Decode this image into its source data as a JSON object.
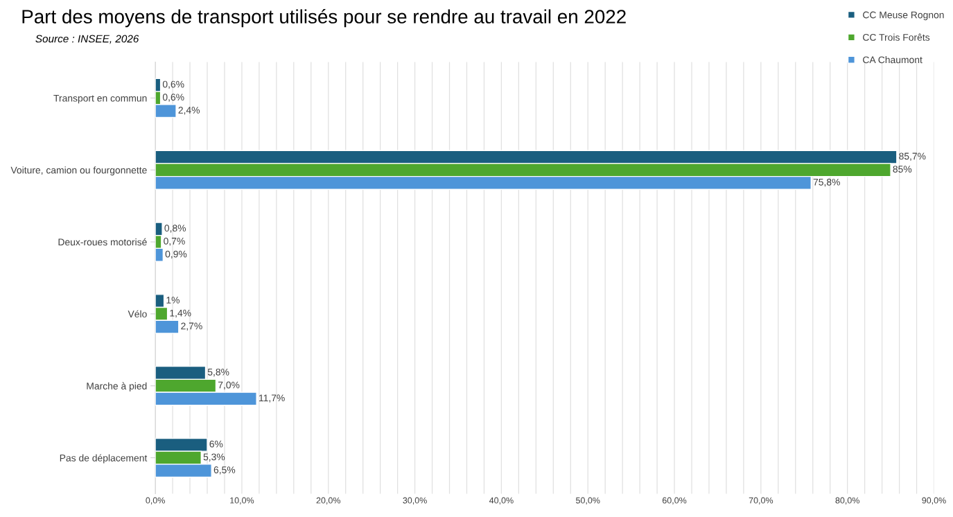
{
  "chart_data": {
    "type": "bar",
    "orientation": "horizontal",
    "title": "Part des moyens de transport utilisés pour se rendre au travail en 2022",
    "annotations": [
      "Source : INSEE, 2026"
    ],
    "categories": [
      "Transport en commun",
      "Voiture, camion ou fourgonnette",
      "Deux-roues motorisé",
      "Vélo",
      "Marche à pied",
      "Pas de déplacement"
    ],
    "series": [
      {
        "name": "CC Meuse Rognon",
        "color": "#1a5e7f",
        "values": [
          0.6,
          85.7,
          0.8,
          1,
          5.8,
          6
        ],
        "value_labels": [
          "0,6%",
          "85,7%",
          "0,8%",
          "1%",
          "5,8%",
          "6%"
        ]
      },
      {
        "name": "CC Trois Forêts",
        "color": "#4ea72e",
        "values": [
          0.6,
          85,
          0.7,
          1.4,
          7.0,
          5.3
        ],
        "value_labels": [
          "0,6%",
          "85%",
          "0,7%",
          "1,4%",
          "7,0%",
          "5,3%"
        ]
      },
      {
        "name": "CA Chaumont",
        "color": "#4e95d9",
        "values": [
          2.4,
          75.8,
          0.9,
          2.7,
          11.7,
          6.5
        ],
        "value_labels": [
          "2,4%",
          "75,8%",
          "0,9%",
          "2,7%",
          "11,7%",
          "6,5%"
        ]
      }
    ],
    "xlim": [
      0,
      90
    ],
    "xticks": [
      {
        "value": 0,
        "label": "0,0%"
      },
      {
        "value": 2,
        "label": null
      },
      {
        "value": 4,
        "label": null
      },
      {
        "value": 6,
        "label": null
      },
      {
        "value": 8,
        "label": null
      },
      {
        "value": 10,
        "label": "10,0%"
      },
      {
        "value": 12,
        "label": null
      },
      {
        "value": 14,
        "label": null
      },
      {
        "value": 16,
        "label": null
      },
      {
        "value": 18,
        "label": null
      },
      {
        "value": 20,
        "label": "20,0%"
      },
      {
        "value": 22,
        "label": null
      },
      {
        "value": 24,
        "label": null
      },
      {
        "value": 26,
        "label": null
      },
      {
        "value": 28,
        "label": null
      },
      {
        "value": 30,
        "label": "30,0%"
      },
      {
        "value": 32,
        "label": null
      },
      {
        "value": 34,
        "label": null
      },
      {
        "value": 36,
        "label": null
      },
      {
        "value": 38,
        "label": null
      },
      {
        "value": 40,
        "label": "40,0%"
      },
      {
        "value": 42,
        "label": null
      },
      {
        "value": 44,
        "label": null
      },
      {
        "value": 46,
        "label": null
      },
      {
        "value": 48,
        "label": null
      },
      {
        "value": 50,
        "label": "50,0%"
      },
      {
        "value": 52,
        "label": null
      },
      {
        "value": 54,
        "label": null
      },
      {
        "value": 56,
        "label": null
      },
      {
        "value": 58,
        "label": null
      },
      {
        "value": 60,
        "label": "60,0%"
      },
      {
        "value": 62,
        "label": null
      },
      {
        "value": 64,
        "label": null
      },
      {
        "value": 66,
        "label": null
      },
      {
        "value": 68,
        "label": null
      },
      {
        "value": 70,
        "label": "70,0%"
      },
      {
        "value": 72,
        "label": null
      },
      {
        "value": 74,
        "label": null
      },
      {
        "value": 76,
        "label": null
      },
      {
        "value": 78,
        "label": null
      },
      {
        "value": 80,
        "label": "80,0%"
      },
      {
        "value": 82,
        "label": null
      },
      {
        "value": 84,
        "label": null
      },
      {
        "value": 86,
        "label": null
      },
      {
        "value": 88,
        "label": null
      },
      {
        "value": 90,
        "label": "90,0%"
      }
    ],
    "grid": "x",
    "legend": "top right"
  }
}
